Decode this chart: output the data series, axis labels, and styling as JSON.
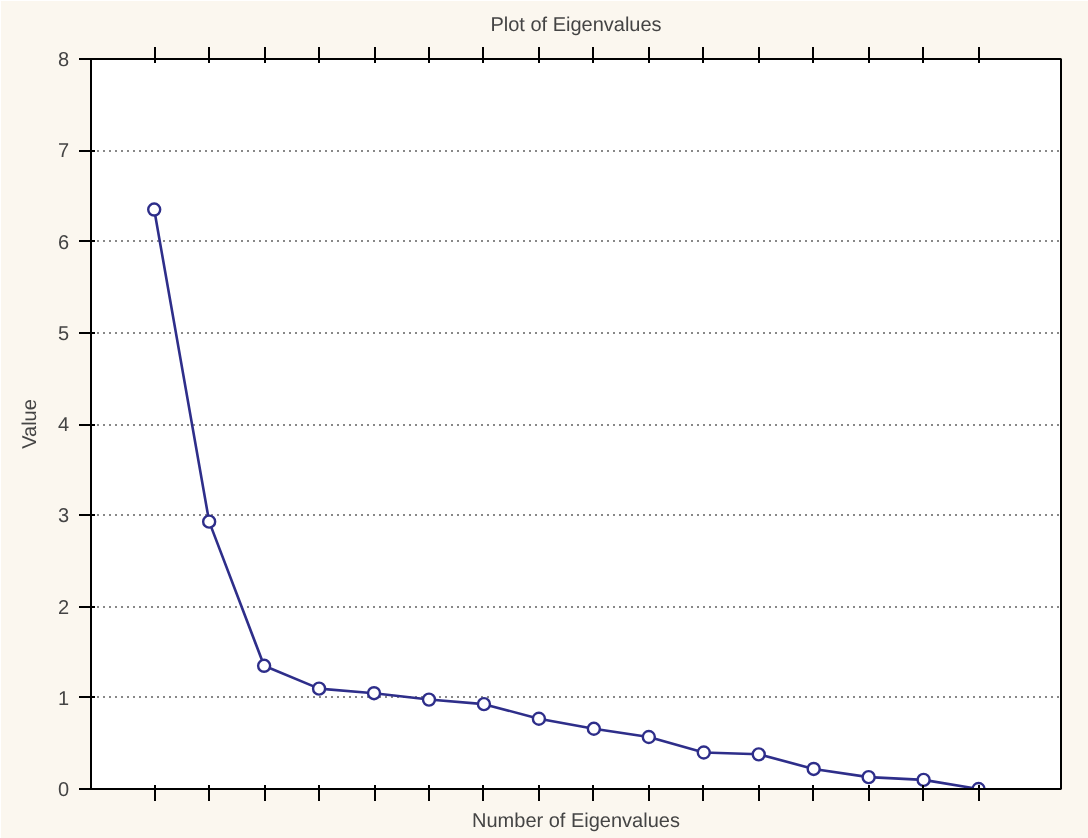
{
  "chart_data": {
    "type": "line",
    "title": "Plot of Eigenvalues",
    "xlabel": "Number of Eigenvalues",
    "ylabel": "Value",
    "categories": [
      null,
      null,
      null,
      null,
      null,
      null,
      null,
      null,
      null,
      null,
      null,
      null,
      null,
      null,
      null,
      null
    ],
    "series": [
      {
        "color": "#2e2e8a",
        "values": [
          6.35,
          2.93,
          1.35,
          1.1,
          1.05,
          0.98,
          0.93,
          0.77,
          0.66,
          0.57,
          0.4,
          0.38,
          0.22,
          0.13,
          0.1,
          0.0
        ]
      }
    ],
    "ylim": [
      0,
      8
    ],
    "yticks": [
      0,
      1,
      2,
      3,
      4,
      5,
      6,
      7,
      8
    ],
    "grid": "y",
    "marker": "circle",
    "line_style": "solid",
    "tick_labels": "y"
  }
}
